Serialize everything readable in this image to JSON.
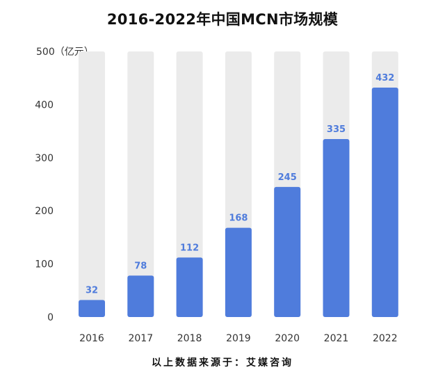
{
  "chart_data": {
    "type": "bar",
    "title": "2016-2022年中国MCN市场规模",
    "unit_label": "500（亿元）",
    "categories": [
      "2016",
      "2017",
      "2018",
      "2019",
      "2020",
      "2021",
      "2022"
    ],
    "values": [
      32,
      78,
      112,
      168,
      245,
      335,
      432
    ],
    "ylim": [
      0,
      500
    ],
    "yticks": [
      0,
      100,
      200,
      300,
      400
    ],
    "grid": false,
    "bar_background": true,
    "show_value_labels": true,
    "source": "以上数据来源于：艾媒咨询"
  },
  "colors": {
    "bar": "#4F7CDC",
    "bar_background": "#EBEBEB",
    "value_label": "#4F7CDC",
    "axis_text": "#333333",
    "title": "#111111"
  }
}
